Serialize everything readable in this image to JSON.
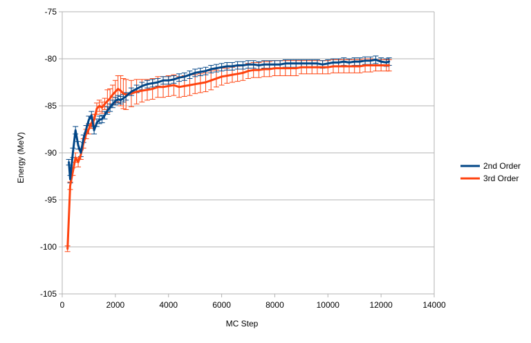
{
  "chart_data": {
    "type": "line",
    "xlabel": "MC Step",
    "ylabel": "Energy (MeV)",
    "xlim": [
      0,
      14000
    ],
    "ylim": [
      -105,
      -75
    ],
    "xticks": [
      0,
      2000,
      4000,
      6000,
      8000,
      10000,
      12000,
      14000
    ],
    "yticks": [
      -105,
      -100,
      -95,
      -90,
      -85,
      -80,
      -75
    ],
    "grid": "horizontal",
    "legend_position": "right",
    "series": [
      {
        "name": "2nd Order",
        "color": "#004586",
        "x": [
          250,
          300,
          400,
          500,
          600,
          700,
          800,
          900,
          1000,
          1100,
          1200,
          1300,
          1400,
          1500,
          1600,
          1700,
          1800,
          1900,
          2000,
          2100,
          2200,
          2300,
          2400,
          2600,
          2800,
          3000,
          3200,
          3400,
          3600,
          3800,
          4000,
          4200,
          4400,
          4600,
          4800,
          5000,
          5200,
          5400,
          5600,
          5800,
          6000,
          6200,
          6400,
          6600,
          6800,
          7000,
          7200,
          7400,
          7600,
          7800,
          8000,
          8200,
          8400,
          8600,
          8800,
          9000,
          9200,
          9400,
          9600,
          9800,
          10000,
          10200,
          10400,
          10600,
          10800,
          11000,
          11200,
          11400,
          11600,
          11800,
          12000,
          12200,
          12300
        ],
        "y": [
          -91.0,
          -92.8,
          -90.0,
          -87.6,
          -89.2,
          -90.0,
          -88.5,
          -87.5,
          -86.5,
          -86.0,
          -87.6,
          -86.8,
          -86.5,
          -86.4,
          -86.0,
          -85.5,
          -85.2,
          -84.8,
          -84.5,
          -84.3,
          -84.4,
          -84.2,
          -84.0,
          -83.5,
          -83.2,
          -82.9,
          -82.7,
          -82.6,
          -82.5,
          -82.3,
          -82.3,
          -82.2,
          -82.0,
          -81.9,
          -81.7,
          -81.5,
          -81.4,
          -81.3,
          -81.1,
          -81.0,
          -80.9,
          -80.8,
          -80.8,
          -80.7,
          -80.7,
          -80.6,
          -80.6,
          -80.7,
          -80.6,
          -80.6,
          -80.6,
          -80.6,
          -80.5,
          -80.5,
          -80.5,
          -80.5,
          -80.5,
          -80.5,
          -80.5,
          -80.6,
          -80.5,
          -80.4,
          -80.4,
          -80.3,
          -80.4,
          -80.3,
          -80.3,
          -80.2,
          -80.2,
          -80.1,
          -80.3,
          -80.4,
          -80.3
        ],
        "error": [
          0.3,
          0.4,
          0.5,
          0.4,
          0.4,
          0.4,
          0.4,
          0.4,
          0.4,
          0.4,
          0.4,
          0.4,
          0.4,
          0.4,
          0.4,
          0.4,
          0.4,
          0.4,
          0.4,
          0.4,
          0.4,
          0.4,
          0.4,
          0.4,
          0.4,
          0.4,
          0.4,
          0.4,
          0.4,
          0.4,
          0.4,
          0.4,
          0.4,
          0.4,
          0.4,
          0.4,
          0.4,
          0.4,
          0.4,
          0.4,
          0.4,
          0.4,
          0.4,
          0.4,
          0.4,
          0.4,
          0.4,
          0.4,
          0.4,
          0.4,
          0.4,
          0.4,
          0.4,
          0.4,
          0.4,
          0.4,
          0.4,
          0.4,
          0.4,
          0.4,
          0.4,
          0.4,
          0.4,
          0.4,
          0.4,
          0.4,
          0.4,
          0.4,
          0.4,
          0.4,
          0.4,
          0.4,
          0.4
        ]
      },
      {
        "name": "3rd Order",
        "color": "#ff420e",
        "x": [
          200,
          300,
          400,
          500,
          600,
          700,
          800,
          900,
          1000,
          1100,
          1200,
          1300,
          1400,
          1500,
          1600,
          1700,
          1800,
          1900,
          2000,
          2100,
          2200,
          2300,
          2400,
          2600,
          2800,
          3000,
          3200,
          3400,
          3600,
          3800,
          4000,
          4200,
          4400,
          4600,
          4800,
          5000,
          5200,
          5400,
          5600,
          5800,
          6000,
          6200,
          6400,
          6600,
          6800,
          7000,
          7200,
          7400,
          7600,
          7800,
          8000,
          8200,
          8400,
          8600,
          8800,
          9000,
          9200,
          9400,
          9600,
          9800,
          10000,
          10200,
          10400,
          10600,
          10800,
          11000,
          11200,
          11400,
          11600,
          11800,
          12000,
          12200,
          12300
        ],
        "y": [
          -100.2,
          -93.5,
          -92.0,
          -90.5,
          -91.0,
          -90.2,
          -89.0,
          -88.0,
          -87.5,
          -86.8,
          -86.5,
          -85.3,
          -85.0,
          -85.2,
          -84.8,
          -84.5,
          -84.2,
          -83.8,
          -83.5,
          -83.2,
          -83.4,
          -83.7,
          -83.8,
          -83.7,
          -83.5,
          -83.4,
          -83.3,
          -83.2,
          -83.0,
          -83.0,
          -82.9,
          -82.8,
          -83.0,
          -82.9,
          -82.8,
          -82.7,
          -82.6,
          -82.5,
          -82.3,
          -82.1,
          -81.9,
          -81.8,
          -81.7,
          -81.6,
          -81.5,
          -81.3,
          -81.2,
          -81.2,
          -81.1,
          -81.1,
          -81.0,
          -81.0,
          -81.0,
          -81.0,
          -81.0,
          -80.9,
          -80.9,
          -80.9,
          -80.9,
          -80.9,
          -80.9,
          -80.8,
          -80.8,
          -80.8,
          -80.8,
          -80.8,
          -80.8,
          -80.7,
          -80.7,
          -80.7,
          -80.7,
          -80.7,
          -80.7
        ],
        "error": [
          0.3,
          0.4,
          0.4,
          0.5,
          0.5,
          0.5,
          0.5,
          0.5,
          0.5,
          0.6,
          0.6,
          0.6,
          0.6,
          0.6,
          0.6,
          1.2,
          1.0,
          1.0,
          1.2,
          1.4,
          1.6,
          1.6,
          1.6,
          1.4,
          1.3,
          1.2,
          1.1,
          1.1,
          1.1,
          1.1,
          1.1,
          1.1,
          1.1,
          1.1,
          1.1,
          1.0,
          1.0,
          1.0,
          1.0,
          0.9,
          0.9,
          0.8,
          0.8,
          0.8,
          0.8,
          0.8,
          0.8,
          0.8,
          0.8,
          0.8,
          0.8,
          0.8,
          0.8,
          0.8,
          0.8,
          0.7,
          0.7,
          0.7,
          0.7,
          0.7,
          0.7,
          0.7,
          0.7,
          0.7,
          0.7,
          0.7,
          0.7,
          0.7,
          0.7,
          0.6,
          0.6,
          0.6,
          0.6
        ]
      }
    ]
  }
}
